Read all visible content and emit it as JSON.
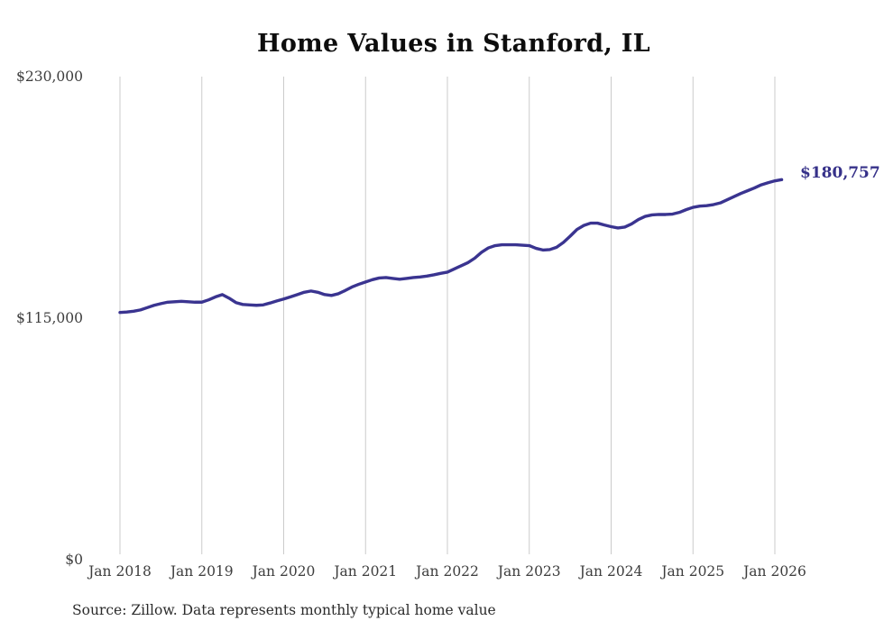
{
  "chart_data": {
    "type": "line",
    "title": "Home Values in Stanford, IL",
    "xlabel": "",
    "ylabel": "",
    "ylim": [
      0,
      230000
    ],
    "y_ticks": [
      0,
      115000,
      230000
    ],
    "y_tick_labels": [
      "$0",
      "$115,000",
      "$230,000"
    ],
    "x_tick_labels": [
      "Jan 2018",
      "Jan 2019",
      "Jan 2020",
      "Jan 2021",
      "Jan 2022",
      "Jan 2023",
      "Jan 2024",
      "Jan 2025",
      "Jan 2026"
    ],
    "grid": "vertical-only",
    "legend": "none",
    "end_label": "$180,757",
    "x": [
      "2018-01",
      "2018-02",
      "2018-03",
      "2018-04",
      "2018-05",
      "2018-06",
      "2018-07",
      "2018-08",
      "2018-09",
      "2018-10",
      "2018-11",
      "2018-12",
      "2019-01",
      "2019-02",
      "2019-03",
      "2019-04",
      "2019-05",
      "2019-06",
      "2019-07",
      "2019-08",
      "2019-09",
      "2019-10",
      "2019-11",
      "2019-12",
      "2020-01",
      "2020-02",
      "2020-03",
      "2020-04",
      "2020-05",
      "2020-06",
      "2020-07",
      "2020-08",
      "2020-09",
      "2020-10",
      "2020-11",
      "2020-12",
      "2021-01",
      "2021-02",
      "2021-03",
      "2021-04",
      "2021-05",
      "2021-06",
      "2021-07",
      "2021-08",
      "2021-09",
      "2021-10",
      "2021-11",
      "2021-12",
      "2022-01",
      "2022-02",
      "2022-03",
      "2022-04",
      "2022-05",
      "2022-06",
      "2022-07",
      "2022-08",
      "2022-09",
      "2022-10",
      "2022-11",
      "2022-12",
      "2023-01",
      "2023-02",
      "2023-03",
      "2023-04",
      "2023-05",
      "2023-06",
      "2023-07",
      "2023-08",
      "2023-09",
      "2023-10",
      "2023-11",
      "2023-12",
      "2024-01",
      "2024-02",
      "2024-03",
      "2024-04",
      "2024-05",
      "2024-06",
      "2024-07",
      "2024-08",
      "2024-09",
      "2024-10",
      "2024-11",
      "2024-12",
      "2025-01",
      "2025-02",
      "2025-03",
      "2025-04",
      "2025-05",
      "2025-06",
      "2025-07",
      "2025-08",
      "2025-09",
      "2025-10",
      "2025-11",
      "2025-12",
      "2026-01",
      "2026-02"
    ],
    "series": [
      {
        "name": "Monthly typical home value",
        "color": "#3a3490",
        "values": [
          117600,
          117800,
          118200,
          118800,
          119900,
          121000,
          121800,
          122500,
          122700,
          122900,
          122700,
          122500,
          122500,
          123600,
          125000,
          126100,
          124400,
          122300,
          121400,
          121200,
          121000,
          121200,
          122100,
          123100,
          124000,
          125000,
          126100,
          127200,
          127800,
          127200,
          126100,
          125700,
          126500,
          128000,
          129700,
          131000,
          132100,
          133200,
          134000,
          134200,
          133800,
          133400,
          133800,
          134200,
          134500,
          134900,
          135500,
          136200,
          136800,
          138300,
          139800,
          141300,
          143400,
          146200,
          148300,
          149400,
          149800,
          149800,
          149800,
          149600,
          149400,
          148100,
          147300,
          147500,
          148600,
          150900,
          153900,
          157100,
          159000,
          160100,
          160100,
          159200,
          158400,
          157800,
          158200,
          159700,
          161800,
          163300,
          164000,
          164200,
          164200,
          164400,
          165200,
          166500,
          167600,
          168200,
          168400,
          168900,
          169700,
          171200,
          172700,
          174200,
          175500,
          176800,
          178300,
          179300,
          180200,
          180757
        ]
      }
    ]
  },
  "source_note": "Source: Zillow. Data represents monthly typical home value",
  "colors": {
    "line": "#3a3490",
    "end_label": "#363189",
    "grid": "#cbcbcb",
    "axis_text": "#3d3d3d",
    "title_text": "#0d0d0d",
    "background": "#ffffff"
  }
}
